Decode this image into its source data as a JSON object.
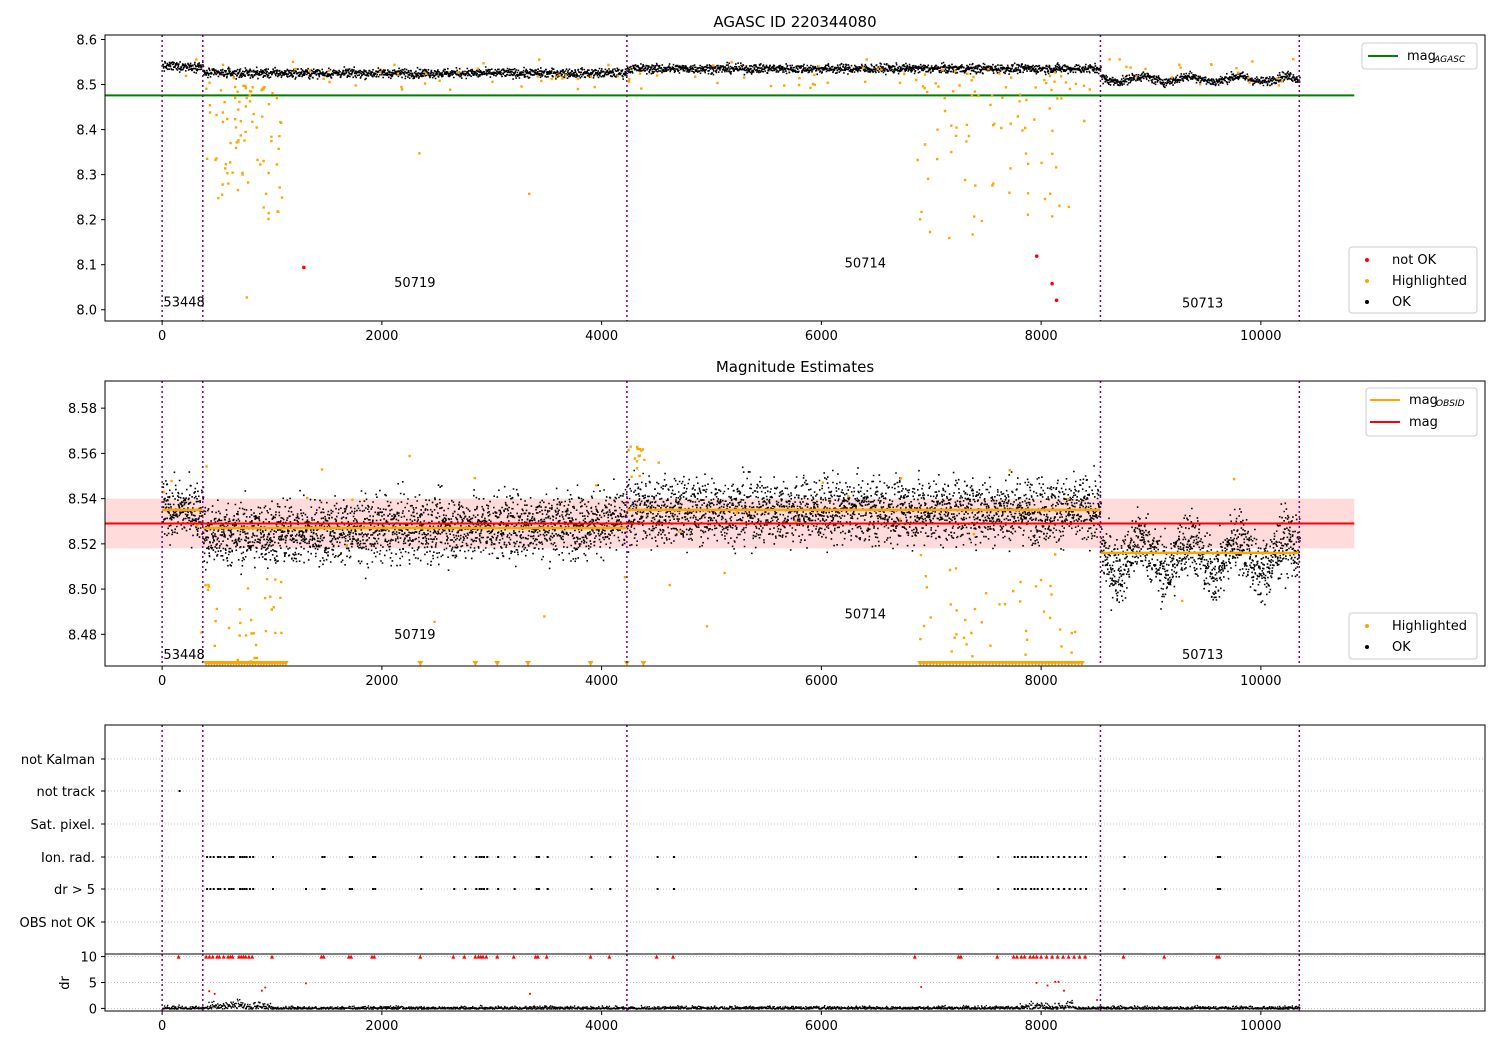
{
  "colors": {
    "ok": "#000000",
    "highlighted": "#ffa500",
    "not_ok": "#ff0000",
    "mag_agasc_line": "#008000",
    "mag_line": "#ff0000",
    "mag_obsid_line": "#ffa500",
    "obsid_boundary": "#800080",
    "mag_band": "#ffcccc",
    "flag_grid": "#b0b0b0"
  },
  "obsid_boundaries_x": [
    0,
    370,
    4230,
    8540,
    10350
  ],
  "chart_data": [
    {
      "type": "scatter",
      "title": "AGASC ID 220344080",
      "xlabel": "",
      "ylabel": "",
      "xlim": [
        -520,
        12040
      ],
      "ylim": [
        7.975,
        8.61
      ],
      "xticks": [
        0,
        2000,
        4000,
        6000,
        8000,
        10000
      ],
      "yticks": [
        8.0,
        8.1,
        8.2,
        8.3,
        8.4,
        8.5,
        8.6
      ],
      "ytick_labels": [
        "8.0",
        "8.1",
        "8.2",
        "8.3",
        "8.4",
        "8.5",
        "8.6"
      ],
      "mag_agasc": 8.476,
      "mag_agasc_xrange": [
        -520,
        10850
      ],
      "obsid_labels": [
        {
          "text": "53448",
          "x": 200,
          "y": 8.007
        },
        {
          "text": "50719",
          "x": 2300,
          "y": 8.05
        },
        {
          "text": "50714",
          "x": 6400,
          "y": 8.094
        },
        {
          "text": "50713",
          "x": 9470,
          "y": 8.005
        }
      ],
      "obsid_segments": [
        {
          "x0": 0,
          "x1": 370,
          "base": 8.542
        },
        {
          "x0": 370,
          "x1": 4230,
          "base": 8.527
        },
        {
          "x0": 4230,
          "x1": 8540,
          "base": 8.537
        },
        {
          "x0": 8540,
          "x1": 10350,
          "base": 8.514
        }
      ],
      "not_ok_points": [
        [
          1290,
          8.094
        ],
        [
          7960,
          8.119
        ],
        [
          8100,
          8.058
        ],
        [
          8140,
          8.021
        ]
      ],
      "legends": [
        {
          "placement": "upper-right",
          "entries": [
            {
              "label": "mag",
              "sub": "AGASC",
              "marker": "line",
              "color": "#008000"
            }
          ]
        },
        {
          "placement": "lower-right",
          "entries": [
            {
              "label": "not OK",
              "marker": "dot",
              "color": "#ff0000"
            },
            {
              "label": "Highlighted",
              "marker": "dot",
              "color": "#ffa500"
            },
            {
              "label": "OK",
              "marker": "dot",
              "color": "#000000"
            }
          ]
        }
      ]
    },
    {
      "type": "scatter",
      "title": "Magnitude Estimates",
      "xlabel": "",
      "ylabel": "",
      "xlim": [
        -520,
        12040
      ],
      "ylim": [
        8.466,
        8.592
      ],
      "xticks": [
        0,
        2000,
        4000,
        6000,
        8000,
        10000
      ],
      "yticks": [
        8.48,
        8.5,
        8.52,
        8.54,
        8.56,
        8.58
      ],
      "ytick_labels": [
        "8.48",
        "8.50",
        "8.52",
        "8.54",
        "8.56",
        "8.58"
      ],
      "mag": 8.529,
      "mag_band": [
        8.518,
        8.54
      ],
      "mag_xrange": [
        -520,
        10850
      ],
      "mag_obsid": [
        {
          "x0": 0,
          "x1": 370,
          "y": 8.535
        },
        {
          "x0": 370,
          "x1": 4230,
          "y": 8.527
        },
        {
          "x0": 4230,
          "x1": 8540,
          "y": 8.535
        },
        {
          "x0": 8540,
          "x1": 10350,
          "y": 8.516
        }
      ],
      "obsid_labels": [
        {
          "text": "53448",
          "x": 200,
          "y": 8.469
        },
        {
          "text": "50719",
          "x": 2300,
          "y": 8.478
        },
        {
          "text": "50714",
          "x": 6400,
          "y": 8.487
        },
        {
          "text": "50713",
          "x": 9470,
          "y": 8.469
        }
      ],
      "legends": [
        {
          "placement": "upper-right",
          "entries": [
            {
              "label": "mag",
              "sub": "OBSID",
              "marker": "line",
              "color": "#ffa500"
            },
            {
              "label": "mag",
              "sub": "",
              "marker": "line",
              "color": "#ff0000"
            }
          ]
        },
        {
          "placement": "lower-right",
          "entries": [
            {
              "label": "Highlighted",
              "marker": "dot",
              "color": "#ffa500"
            },
            {
              "label": "OK",
              "marker": "dot",
              "color": "#000000"
            }
          ]
        }
      ]
    },
    {
      "type": "scatter",
      "title": "",
      "xlabel": "",
      "ylabel": "",
      "xlim": [
        -520,
        12040
      ],
      "flag_rows": [
        "not Kalman",
        "not track",
        "Sat. pixel.",
        "Ion. rad.",
        "dr > 5",
        "OBS not OK"
      ],
      "flag_points": {
        "not track": [
          150
        ],
        "Ion. rad.": [
          400,
          430,
          460,
          500,
          520,
          560,
          600,
          620,
          640,
          700,
          720,
          740,
          760,
          790,
          820,
          1000,
          1450,
          1470,
          1700,
          1720,
          1910,
          1930,
          2350,
          2650,
          2750,
          2850,
          2880,
          2900,
          2920,
          2950,
          3050,
          3200,
          3400,
          3420,
          3500,
          3900,
          4070,
          4500,
          4650,
          6850,
          7250,
          7270,
          7600,
          7750,
          7780,
          7820,
          7850,
          7900,
          7930,
          7960,
          8000,
          8050,
          8100,
          8150,
          8200,
          8250,
          8300,
          8350,
          8400,
          8750,
          9120,
          9600,
          9620
        ],
        "dr > 5": [
          400,
          430,
          460,
          500,
          520,
          560,
          600,
          620,
          640,
          700,
          720,
          740,
          760,
          790,
          820,
          1000,
          1300,
          1450,
          1470,
          1700,
          1720,
          1910,
          1930,
          2350,
          2650,
          2750,
          2850,
          2880,
          2900,
          2920,
          2950,
          3050,
          3200,
          3400,
          3420,
          3500,
          3900,
          4070,
          4500,
          4650,
          6850,
          7250,
          7270,
          7600,
          7750,
          7780,
          7820,
          7850,
          7900,
          7930,
          7960,
          8000,
          8050,
          8100,
          8150,
          8200,
          8250,
          8300,
          8350,
          8400,
          8750,
          9120,
          9600,
          9620
        ]
      }
    },
    {
      "type": "scatter",
      "title": "",
      "xlabel": "",
      "ylabel": "dr",
      "xlim": [
        -520,
        12040
      ],
      "ylim": [
        -0.5,
        10.5
      ],
      "xticks": [
        0,
        2000,
        4000,
        6000,
        8000,
        10000
      ],
      "yticks": [
        0,
        5,
        10
      ],
      "ytick_labels": [
        "0",
        "5",
        "10"
      ],
      "capped_points": [
        150,
        400,
        430,
        460,
        500,
        520,
        560,
        600,
        620,
        640,
        700,
        720,
        740,
        760,
        790,
        820,
        1000,
        1450,
        1470,
        1700,
        1720,
        1910,
        1930,
        2350,
        2650,
        2750,
        2850,
        2880,
        2900,
        2920,
        2950,
        3050,
        3200,
        3400,
        3420,
        3500,
        3900,
        4070,
        4500,
        4650,
        6850,
        7250,
        7270,
        7600,
        7750,
        7780,
        7820,
        7850,
        7900,
        7930,
        7960,
        8000,
        8050,
        8100,
        8150,
        8200,
        8250,
        8300,
        8350,
        8400,
        8750,
        9120,
        9600,
        9620
      ],
      "mid_points": [
        [
          420,
          3.5
        ],
        [
          470,
          3.0
        ],
        [
          900,
          3.6
        ],
        [
          930,
          4.2
        ],
        [
          1300,
          5.0
        ],
        [
          3340,
          3.0
        ],
        [
          6900,
          4.3
        ],
        [
          7950,
          5.1
        ],
        [
          8050,
          4.6
        ],
        [
          8120,
          5.3
        ],
        [
          8150,
          5.3
        ],
        [
          8200,
          3.6
        ],
        [
          8500,
          1.8
        ]
      ]
    }
  ]
}
